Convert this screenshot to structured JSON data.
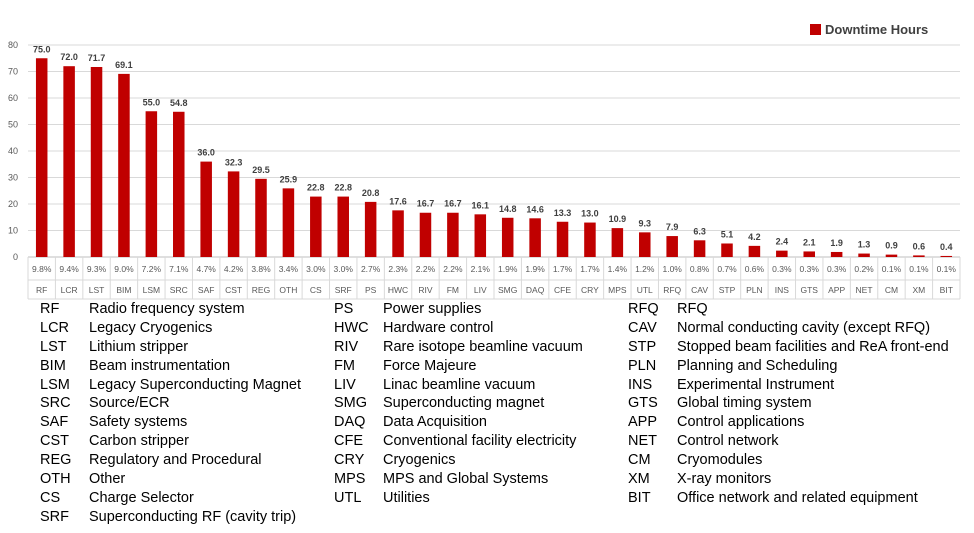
{
  "chart_data": {
    "type": "bar",
    "legend": "Downtime Hours",
    "legend_position": "top-right",
    "color": "#C00000",
    "ylim": [
      0,
      80
    ],
    "yticks": [
      0,
      10,
      20,
      30,
      40,
      50,
      60,
      70,
      80
    ],
    "grid": true,
    "categories": [
      "RF",
      "LCR",
      "LST",
      "BIM",
      "LSM",
      "SRC",
      "SAF",
      "CST",
      "REG",
      "OTH",
      "CS",
      "SRF",
      "PS",
      "HWC",
      "RIV",
      "FM",
      "LIV",
      "SMG",
      "DAQ",
      "CFE",
      "CRY",
      "MPS",
      "UTL",
      "RFQ",
      "CAV",
      "STP",
      "PLN",
      "INS",
      "GTS",
      "APP",
      "NET",
      "CM",
      "XM",
      "BIT"
    ],
    "values": [
      75.0,
      72.0,
      71.7,
      69.1,
      55.0,
      54.8,
      36.0,
      32.3,
      29.5,
      25.9,
      22.8,
      22.8,
      20.8,
      17.6,
      16.7,
      16.7,
      16.1,
      14.8,
      14.6,
      13.3,
      13.0,
      10.9,
      9.3,
      7.9,
      6.3,
      5.1,
      4.2,
      2.4,
      2.1,
      1.9,
      1.3,
      0.9,
      0.6,
      0.4
    ],
    "value_labels": [
      "75.0",
      "72.0",
      "71.7",
      "69.1",
      "55.0",
      "54.8",
      "36.0",
      "32.3",
      "29.5",
      "25.9",
      "22.8",
      "22.8",
      "20.8",
      "17.6",
      "16.7",
      "16.7",
      "16.1",
      "14.8",
      "14.6",
      "13.3",
      "13.0",
      "10.9",
      "9.3",
      "7.9",
      "6.3",
      "5.1",
      "4.2",
      "2.4",
      "2.1",
      "1.9",
      "1.3",
      "0.9",
      "0.6",
      "0.4"
    ],
    "percentages": [
      "9.8%",
      "9.4%",
      "9.3%",
      "9.0%",
      "7.2%",
      "7.1%",
      "4.7%",
      "4.2%",
      "3.8%",
      "3.4%",
      "3.0%",
      "3.0%",
      "2.7%",
      "2.3%",
      "2.2%",
      "2.2%",
      "2.1%",
      "1.9%",
      "1.9%",
      "1.7%",
      "1.7%",
      "1.4%",
      "1.2%",
      "1.0%",
      "0.8%",
      "0.7%",
      "0.6%",
      "0.3%",
      "0.3%",
      "0.3%",
      "0.2%",
      "0.1%",
      "0.1%",
      "0.1%"
    ]
  },
  "abbreviations": [
    [
      {
        "code": "RF",
        "desc": "Radio frequency system"
      },
      {
        "code": "LCR",
        "desc": "Legacy Cryogenics"
      },
      {
        "code": "LST",
        "desc": "Lithium stripper"
      },
      {
        "code": "BIM",
        "desc": "Beam instrumentation"
      },
      {
        "code": "LSM",
        "desc": "Legacy Superconducting Magnet"
      },
      {
        "code": "SRC",
        "desc": "Source/ECR"
      },
      {
        "code": "SAF",
        "desc": "Safety systems"
      },
      {
        "code": "CST",
        "desc": "Carbon stripper"
      },
      {
        "code": "REG",
        "desc": "Regulatory and Procedural"
      },
      {
        "code": "OTH",
        "desc": "Other"
      },
      {
        "code": "CS",
        "desc": "Charge Selector"
      },
      {
        "code": "SRF",
        "desc": "Superconducting RF (cavity trip)"
      }
    ],
    [
      {
        "code": "PS",
        "desc": "Power supplies"
      },
      {
        "code": "HWC",
        "desc": "Hardware control"
      },
      {
        "code": "RIV",
        "desc": "Rare isotope beamline vacuum"
      },
      {
        "code": "FM",
        "desc": "Force Majeure"
      },
      {
        "code": "LIV",
        "desc": "Linac beamline vacuum"
      },
      {
        "code": "SMG",
        "desc": "Superconducting magnet"
      },
      {
        "code": "DAQ",
        "desc": "Data Acquisition"
      },
      {
        "code": "CFE",
        "desc": "Conventional facility electricity"
      },
      {
        "code": "CRY",
        "desc": "Cryogenics"
      },
      {
        "code": "MPS",
        "desc": "MPS and Global Systems"
      },
      {
        "code": "UTL",
        "desc": "Utilities"
      }
    ],
    [
      {
        "code": "RFQ",
        "desc": "RFQ"
      },
      {
        "code": "CAV",
        "desc": "Normal conducting cavity (except RFQ)"
      },
      {
        "code": "STP",
        "desc": "Stopped beam facilities and ReA front-end"
      },
      {
        "code": "PLN",
        "desc": "Planning and Scheduling"
      },
      {
        "code": "INS",
        "desc": "Experimental Instrument"
      },
      {
        "code": "GTS",
        "desc": "Global timing system"
      },
      {
        "code": "APP",
        "desc": "Control applications"
      },
      {
        "code": "NET",
        "desc": "Control network"
      },
      {
        "code": "CM",
        "desc": "Cryomodules"
      },
      {
        "code": "XM",
        "desc": "X-ray monitors"
      },
      {
        "code": "BIT",
        "desc": "Office network and related equipment"
      }
    ]
  ]
}
